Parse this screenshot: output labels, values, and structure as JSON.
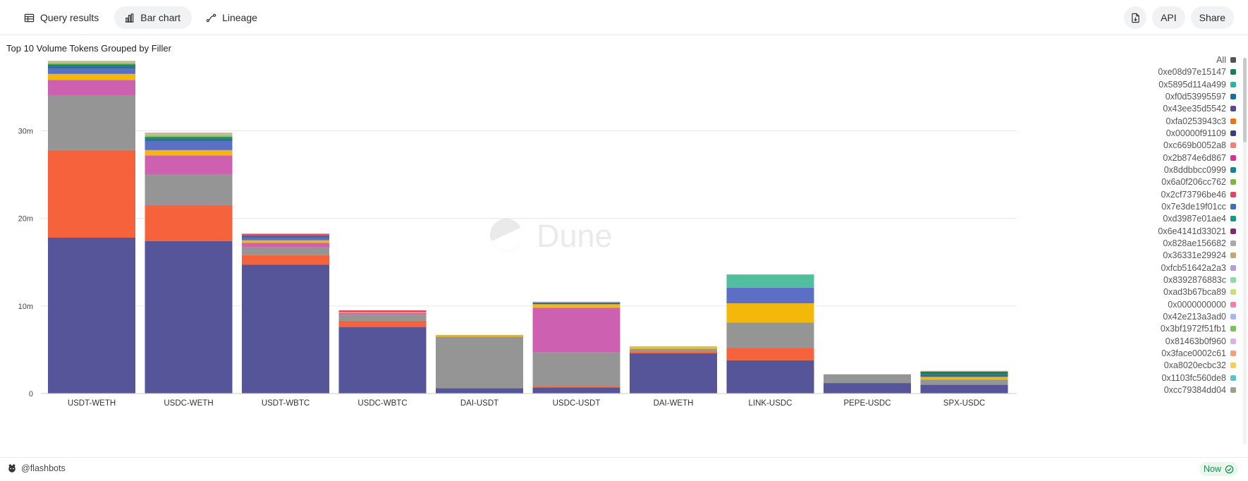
{
  "tabs": [
    {
      "label": "Query results",
      "icon": "table-icon"
    },
    {
      "label": "Bar chart",
      "icon": "bar-chart-icon"
    },
    {
      "label": "Lineage",
      "icon": "lineage-icon"
    }
  ],
  "actions": {
    "export_icon": "export-icon",
    "api_label": "API",
    "share_label": "Share"
  },
  "footer": {
    "owner": "@flashbots",
    "status": "Now"
  },
  "chart_data": {
    "type": "bar",
    "stacked": true,
    "title": "Top 10 Volume Tokens Grouped by Filler",
    "xlabel": "",
    "ylabel": "",
    "ylim": [
      0,
      38500000
    ],
    "yticks": [
      {
        "value": 0,
        "label": "0"
      },
      {
        "value": 10000000,
        "label": "10m"
      },
      {
        "value": 20000000,
        "label": "20m"
      },
      {
        "value": 30000000,
        "label": "30m"
      }
    ],
    "grid": true,
    "legend_position": "right",
    "watermark": "Dune",
    "categories": [
      "USDT-WETH",
      "USDC-WETH",
      "USDT-WBTC",
      "USDC-WBTC",
      "DAI-USDT",
      "USDC-USDT",
      "DAI-WETH",
      "LINK-USDC",
      "PEPE-USDC",
      "SPX-USDC"
    ],
    "legend": [
      {
        "name": "All",
        "color": "#555555"
      },
      {
        "name": "0xe08d97e15147",
        "color": "#1b7f4f"
      },
      {
        "name": "0x5895d114a499",
        "color": "#35b0a0"
      },
      {
        "name": "0xf0d53995597",
        "color": "#1e6c8f"
      },
      {
        "name": "0x43ee35d5542",
        "color": "#5a4a8c"
      },
      {
        "name": "0xfa0253943c3",
        "color": "#e8751a"
      },
      {
        "name": "0x00000f91109",
        "color": "#3b3f7a"
      },
      {
        "name": "0xc669b0052a8",
        "color": "#f0826e"
      },
      {
        "name": "0x2b874e6d867",
        "color": "#d6338a"
      },
      {
        "name": "0x8ddbbcc0999",
        "color": "#19838f"
      },
      {
        "name": "0x6a0f206cc762",
        "color": "#7ab648"
      },
      {
        "name": "0x2cf73796be46",
        "color": "#e0446b"
      },
      {
        "name": "0x7e3de19f01cc",
        "color": "#3f6fb3"
      },
      {
        "name": "0xd3987e01ae4",
        "color": "#149a7f"
      },
      {
        "name": "0x6e4141d33021",
        "color": "#7a2e6e"
      },
      {
        "name": "0x828ae156682",
        "color": "#aaaaaa"
      },
      {
        "name": "0x36331e29924",
        "color": "#c6a57a"
      },
      {
        "name": "0xfcb51642a2a3",
        "color": "#b39ddb"
      },
      {
        "name": "0x8392876883c",
        "color": "#8fdca2"
      },
      {
        "name": "0xad3b67bca89",
        "color": "#c5e07a"
      },
      {
        "name": "0x0000000000",
        "color": "#f57fb0"
      },
      {
        "name": "0x42e213a3ad0",
        "color": "#a5b8ea"
      },
      {
        "name": "0x3bf1972f51fb1",
        "color": "#7fbf5a"
      },
      {
        "name": "0x81463b0f960",
        "color": "#dcb0e6"
      },
      {
        "name": "0x3face0002c61",
        "color": "#f2a07b"
      },
      {
        "name": "0xa8020ecbc32",
        "color": "#f5cd5a"
      },
      {
        "name": "0x1103fc560de8",
        "color": "#58c4cf"
      },
      {
        "name": "0xcc79384dd04",
        "color": "#a3a08a"
      }
    ],
    "series": [
      {
        "color": "#56559a",
        "values": [
          17800000,
          17400000,
          14700000,
          7600000,
          600000,
          700000,
          4600000,
          3800000,
          1200000,
          1000000
        ]
      },
      {
        "color": "#f5623c",
        "values": [
          10000000,
          4100000,
          1100000,
          700000,
          0,
          100000,
          200000,
          1400000,
          0,
          0
        ]
      },
      {
        "color": "#959595",
        "values": [
          6200000,
          3500000,
          900000,
          700000,
          5900000,
          3900000,
          300000,
          2900000,
          1000000,
          600000
        ]
      },
      {
        "color": "#cd60b0",
        "values": [
          1800000,
          2200000,
          500000,
          200000,
          0,
          5100000,
          0,
          0,
          0,
          0
        ]
      },
      {
        "color": "#f4b80a",
        "values": [
          700000,
          600000,
          300000,
          100000,
          200000,
          400000,
          200000,
          2200000,
          0,
          300000
        ]
      },
      {
        "color": "#5b6fc4",
        "values": [
          600000,
          1000000,
          300000,
          0,
          0,
          0,
          0,
          1800000,
          0,
          0
        ]
      },
      {
        "color": "#50bf9d",
        "values": [
          0,
          0,
          0,
          0,
          0,
          0,
          0,
          1500000,
          0,
          0
        ]
      },
      {
        "color": "#2a6f9e",
        "values": [
          300000,
          300000,
          200000,
          0,
          0,
          200000,
          0,
          0,
          0,
          300000
        ]
      },
      {
        "color": "#1b7f4f",
        "values": [
          200000,
          200000,
          0,
          0,
          0,
          0,
          0,
          0,
          0,
          300000
        ]
      },
      {
        "color": "#8fc45a",
        "values": [
          200000,
          200000,
          0,
          0,
          0,
          0,
          0,
          0,
          0,
          0
        ]
      },
      {
        "color": "#e0446b",
        "values": [
          0,
          0,
          200000,
          200000,
          0,
          0,
          0,
          0,
          0,
          0
        ]
      },
      {
        "color": "#c6b8a0",
        "values": [
          200000,
          300000,
          100000,
          0,
          0,
          100000,
          100000,
          0,
          0,
          100000
        ]
      }
    ]
  }
}
